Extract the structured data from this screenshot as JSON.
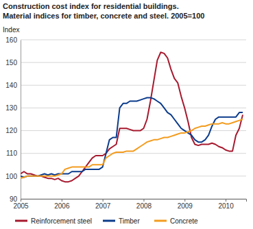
{
  "chart_data": {
    "type": "line",
    "title": "Construction cost index for residential buildings.",
    "subtitle": "Material indices for timber, concrete and steel. 2005=100",
    "y_label": "Index",
    "x": [
      2005,
      2005.083,
      2005.167,
      2005.25,
      2005.333,
      2005.417,
      2005.5,
      2005.583,
      2005.667,
      2005.75,
      2005.833,
      2005.917,
      2006,
      2006.083,
      2006.167,
      2006.25,
      2006.333,
      2006.417,
      2006.5,
      2006.583,
      2006.667,
      2006.75,
      2006.833,
      2006.917,
      2007,
      2007.083,
      2007.167,
      2007.25,
      2007.333,
      2007.417,
      2007.5,
      2007.583,
      2007.667,
      2007.75,
      2007.833,
      2007.917,
      2008,
      2008.083,
      2008.167,
      2008.25,
      2008.333,
      2008.417,
      2008.5,
      2008.583,
      2008.667,
      2008.75,
      2008.833,
      2008.917,
      2009,
      2009.083,
      2009.167,
      2009.25,
      2009.333,
      2009.417,
      2009.5,
      2009.583,
      2009.667,
      2009.75,
      2009.833,
      2009.917,
      2010,
      2010.083,
      2010.167,
      2010.25,
      2010.333,
      2010.417
    ],
    "series": [
      {
        "name": "Reinforcement steel",
        "color": "#a6192e",
        "values": [
          101,
          102,
          101,
          101,
          100.5,
          100,
          100,
          99.5,
          99,
          99,
          98.5,
          99,
          98,
          97.5,
          97.5,
          98,
          99,
          100,
          102,
          104,
          106,
          108,
          109,
          109,
          109,
          110,
          112,
          113,
          114,
          121,
          121,
          121,
          120.5,
          120,
          120,
          120,
          121,
          125,
          133,
          142,
          151,
          154.5,
          154,
          152,
          147,
          143,
          141,
          135,
          130,
          124,
          117,
          114,
          113.5,
          114,
          114,
          114,
          114.5,
          114,
          113,
          112.5,
          111.5,
          111,
          111,
          118,
          121,
          127
        ]
      },
      {
        "name": "Timber",
        "color": "#0b3b8c",
        "values": [
          100,
          99.5,
          100,
          100,
          100,
          100,
          100.5,
          101,
          100.5,
          101,
          100.5,
          101,
          101,
          101,
          101,
          102,
          102,
          102,
          102,
          103,
          103,
          103,
          103,
          103,
          104,
          110,
          116,
          117,
          117,
          130,
          132,
          132,
          133,
          133,
          133,
          133.5,
          134,
          134.5,
          134.5,
          134,
          133,
          132,
          130,
          128,
          127,
          125,
          123,
          121,
          120,
          119,
          118,
          116,
          115,
          115,
          116,
          118,
          122,
          125,
          126,
          126,
          126,
          126,
          126,
          126,
          128,
          128
        ]
      },
      {
        "name": "Concrete",
        "color": "#f39c1e",
        "values": [
          99,
          99.5,
          100,
          100,
          100,
          100,
          100,
          100,
          100,
          100,
          100,
          100.5,
          101,
          103,
          103.5,
          104,
          104,
          104,
          104,
          104,
          104,
          105,
          105,
          105,
          105,
          108,
          109,
          110,
          110.5,
          110.5,
          110.5,
          111,
          111,
          111,
          112,
          113,
          114,
          115,
          115.5,
          116,
          116,
          116.5,
          117,
          117,
          117.5,
          118,
          118.5,
          119,
          119,
          119.5,
          120,
          121,
          121.5,
          122,
          122,
          122.5,
          123,
          123,
          123,
          123.5,
          123,
          123,
          123.5,
          124,
          124.5,
          125
        ]
      }
    ],
    "xlim": [
      2005,
      2010.5
    ],
    "xticks": [
      2005,
      2006,
      2007,
      2008,
      2009,
      2010
    ],
    "ylim": [
      90,
      160
    ],
    "yticks": [
      90,
      100,
      110,
      120,
      130,
      140,
      150,
      160
    ],
    "grid": true,
    "legend": "bottom"
  }
}
